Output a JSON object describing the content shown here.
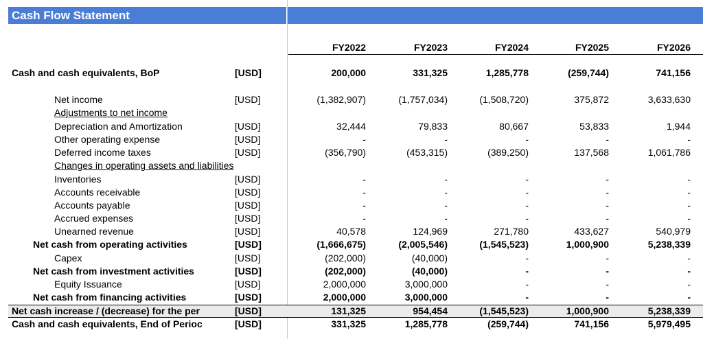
{
  "title": "Cash Flow Statement",
  "years": [
    "FY2022",
    "FY2023",
    "FY2024",
    "FY2025",
    "FY2026"
  ],
  "rows": [
    {
      "label": "Cash and cash equivalents, BoP",
      "unit": "[USD]",
      "values": [
        "200,000",
        "331,325",
        "1,285,778",
        "(259,744)",
        "741,156"
      ],
      "style": "bold",
      "indent": 0
    },
    {
      "label": "Net income",
      "unit": "[USD]",
      "values": [
        "(1,382,907)",
        "(1,757,034)",
        "(1,508,720)",
        "375,872",
        "3,633,630"
      ],
      "style": "normal",
      "indent": 2
    },
    {
      "label": "Adjustments to net income",
      "unit": "",
      "values": [
        "",
        "",
        "",
        "",
        ""
      ],
      "style": "underline",
      "indent": 2
    },
    {
      "label": "Depreciation and Amortization",
      "unit": "[USD]",
      "values": [
        "32,444",
        "79,833",
        "80,667",
        "53,833",
        "1,944"
      ],
      "style": "normal",
      "indent": 2
    },
    {
      "label": "Other operating expense",
      "unit": "[USD]",
      "values": [
        "-",
        "-",
        "-",
        "-",
        "-"
      ],
      "style": "normal",
      "indent": 2
    },
    {
      "label": "Deferred income taxes",
      "unit": "[USD]",
      "values": [
        "(356,790)",
        "(453,315)",
        "(389,250)",
        "137,568",
        "1,061,786"
      ],
      "style": "normal",
      "indent": 2
    },
    {
      "label": "Changes in operating assets and liabilities",
      "unit": "",
      "values": [
        "",
        "",
        "",
        "",
        ""
      ],
      "style": "underline",
      "indent": 2
    },
    {
      "label": "Inventories",
      "unit": "[USD]",
      "values": [
        "-",
        "-",
        "-",
        "-",
        "-"
      ],
      "style": "normal",
      "indent": 2
    },
    {
      "label": "Accounts receivable",
      "unit": "[USD]",
      "values": [
        "-",
        "-",
        "-",
        "-",
        "-"
      ],
      "style": "normal",
      "indent": 2
    },
    {
      "label": "Accounts payable",
      "unit": "[USD]",
      "values": [
        "-",
        "-",
        "-",
        "-",
        "-"
      ],
      "style": "normal",
      "indent": 2
    },
    {
      "label": "Accrued expenses",
      "unit": "[USD]",
      "values": [
        "-",
        "-",
        "-",
        "-",
        "-"
      ],
      "style": "normal",
      "indent": 2
    },
    {
      "label": "Unearned revenue",
      "unit": "[USD]",
      "values": [
        "40,578",
        "124,969",
        "271,780",
        "433,627",
        "540,979"
      ],
      "style": "normal",
      "indent": 2
    },
    {
      "label": "Net cash from operating activities",
      "unit": "[USD]",
      "values": [
        "(1,666,675)",
        "(2,005,546)",
        "(1,545,523)",
        "1,000,900",
        "5,238,339"
      ],
      "style": "bold",
      "indent": 1
    },
    {
      "label": "Capex",
      "unit": "[USD]",
      "values": [
        "(202,000)",
        "(40,000)",
        "-",
        "-",
        "-"
      ],
      "style": "normal",
      "indent": 2
    },
    {
      "label": "Net cash from investment activities",
      "unit": "[USD]",
      "values": [
        "(202,000)",
        "(40,000)",
        "-",
        "-",
        "-"
      ],
      "style": "bold",
      "indent": 1
    },
    {
      "label": "Equity Issuance",
      "unit": "[USD]",
      "values": [
        "2,000,000",
        "3,000,000",
        "-",
        "-",
        "-"
      ],
      "style": "normal",
      "indent": 2
    },
    {
      "label": "Net cash from financing activities",
      "unit": "[USD]",
      "values": [
        "2,000,000",
        "3,000,000",
        "-",
        "-",
        "-"
      ],
      "style": "bold",
      "indent": 1
    },
    {
      "label": "Net cash increase / (decrease) for the per",
      "unit": "[USD]",
      "values": [
        "131,325",
        "954,454",
        "(1,545,523)",
        "1,000,900",
        "5,238,339"
      ],
      "style": "bold",
      "indent": 0
    },
    {
      "label": "Cash and cash equivalents, End of Perioc",
      "unit": "[USD]",
      "values": [
        "331,325",
        "1,285,778",
        "(259,744)",
        "741,156",
        "5,979,495"
      ],
      "style": "bold",
      "indent": 0
    }
  ]
}
